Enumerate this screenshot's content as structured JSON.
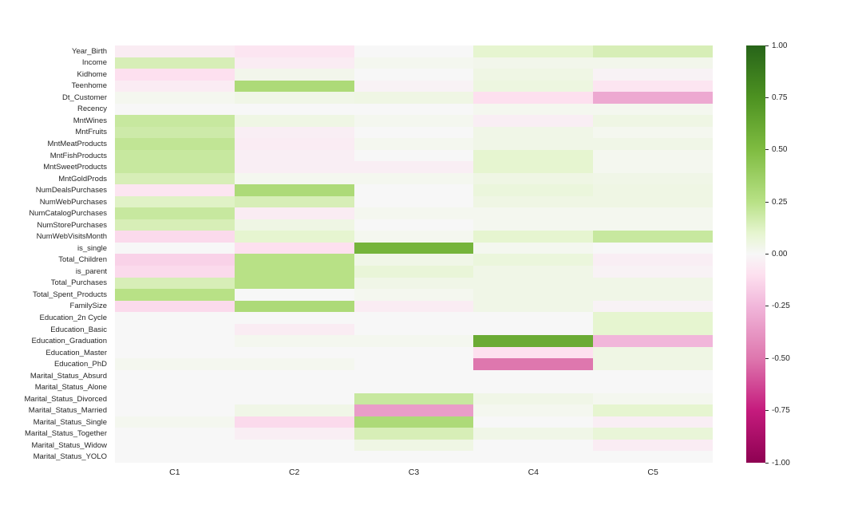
{
  "chart_data": {
    "type": "heatmap",
    "title": "",
    "columns": [
      "C1",
      "C2",
      "C3",
      "C4",
      "C5"
    ],
    "rows": [
      "Year_Birth",
      "Income",
      "Kidhome",
      "Teenhome",
      "Dt_Customer",
      "Recency",
      "MntWines",
      "MntFruits",
      "MntMeatProducts",
      "MntFishProducts",
      "MntSweetProducts",
      "MntGoldProds",
      "NumDealsPurchases",
      "NumWebPurchases",
      "NumCatalogPurchases",
      "NumStorePurchases",
      "NumWebVisitsMonth",
      "is_single",
      "Total_Children",
      "is_parent",
      "Total_Purchases",
      "Total_Spent_Products",
      "FamilySize",
      "Education_2n Cycle",
      "Education_Basic",
      "Education_Graduation",
      "Education_Master",
      "Education_PhD",
      "Marital_Status_Absurd",
      "Marital_Status_Alone",
      "Marital_Status_Divorced",
      "Marital_Status_Married",
      "Marital_Status_Single",
      "Marital_Status_Together",
      "Marital_Status_Widow",
      "Marital_Status_YOLO"
    ],
    "values": [
      [
        -0.05,
        -0.08,
        0.0,
        0.1,
        0.15
      ],
      [
        0.15,
        -0.05,
        0.02,
        0.03,
        0.03
      ],
      [
        -0.1,
        0.03,
        0.0,
        0.05,
        -0.02
      ],
      [
        -0.05,
        0.3,
        -0.02,
        0.06,
        -0.08
      ],
      [
        0.02,
        0.04,
        0.05,
        -0.1,
        -0.3
      ],
      [
        0.0,
        0.0,
        0.0,
        0.02,
        0.02
      ],
      [
        0.2,
        0.05,
        0.02,
        -0.04,
        0.05
      ],
      [
        0.18,
        -0.04,
        0.0,
        0.04,
        0.02
      ],
      [
        0.22,
        -0.05,
        0.02,
        0.04,
        0.04
      ],
      [
        0.2,
        -0.04,
        0.0,
        0.1,
        0.02
      ],
      [
        0.2,
        -0.04,
        -0.04,
        0.1,
        0.02
      ],
      [
        0.15,
        0.02,
        0.02,
        0.05,
        0.04
      ],
      [
        -0.08,
        0.3,
        0.0,
        0.07,
        0.05
      ],
      [
        0.12,
        0.15,
        0.0,
        0.05,
        0.05
      ],
      [
        0.2,
        -0.05,
        0.02,
        0.02,
        0.02
      ],
      [
        0.15,
        0.05,
        0.0,
        0.02,
        0.02
      ],
      [
        -0.12,
        0.1,
        0.02,
        0.1,
        0.2
      ],
      [
        0.0,
        -0.1,
        0.55,
        0.02,
        0.0
      ],
      [
        -0.15,
        0.25,
        0.04,
        0.07,
        -0.04
      ],
      [
        -0.12,
        0.25,
        0.08,
        0.04,
        -0.02
      ],
      [
        0.15,
        0.25,
        0.04,
        0.04,
        0.04
      ],
      [
        0.25,
        0.0,
        0.02,
        0.04,
        0.04
      ],
      [
        -0.12,
        0.3,
        -0.05,
        0.04,
        -0.02
      ],
      [
        0.0,
        0.0,
        0.0,
        0.0,
        0.1
      ],
      [
        0.0,
        -0.05,
        0.0,
        0.0,
        0.1
      ],
      [
        0.0,
        0.02,
        0.02,
        0.6,
        -0.25
      ],
      [
        0.0,
        0.0,
        0.0,
        -0.1,
        0.05
      ],
      [
        0.02,
        0.02,
        0.0,
        -0.5,
        0.05
      ],
      [
        0.0,
        0.0,
        0.0,
        0.0,
        0.0
      ],
      [
        0.0,
        0.0,
        0.0,
        0.0,
        0.0
      ],
      [
        0.0,
        0.0,
        0.2,
        0.04,
        0.02
      ],
      [
        0.0,
        0.04,
        -0.35,
        0.02,
        0.1
      ],
      [
        0.02,
        -0.12,
        0.3,
        0.0,
        -0.04
      ],
      [
        0.0,
        -0.04,
        0.15,
        0.04,
        0.08
      ],
      [
        0.0,
        0.0,
        0.05,
        0.0,
        -0.05
      ],
      [
        0.0,
        0.0,
        0.0,
        0.0,
        0.0
      ]
    ],
    "vmin": -1,
    "vmax": 1,
    "colorbar_ticks": [
      "1.00",
      "0.75",
      "0.50",
      "0.25",
      "0.00",
      "-0.25",
      "-0.50",
      "-0.75",
      "-1.00"
    ],
    "colormap": {
      "name": "PiYG",
      "stops": [
        {
          "value": -1.0,
          "color": "#8e0152"
        },
        {
          "value": -0.75,
          "color": "#c51b7d"
        },
        {
          "value": -0.5,
          "color": "#de77ae"
        },
        {
          "value": -0.25,
          "color": "#f1b6da"
        },
        {
          "value": -0.1,
          "color": "#fde0ef"
        },
        {
          "value": 0.0,
          "color": "#f7f7f7"
        },
        {
          "value": 0.1,
          "color": "#e6f5d0"
        },
        {
          "value": 0.25,
          "color": "#b8e186"
        },
        {
          "value": 0.5,
          "color": "#7fbc41"
        },
        {
          "value": 0.75,
          "color": "#4d9221"
        },
        {
          "value": 1.0,
          "color": "#276419"
        }
      ]
    },
    "layout": {
      "legend_position": "right-colorbar",
      "grid": false
    }
  }
}
